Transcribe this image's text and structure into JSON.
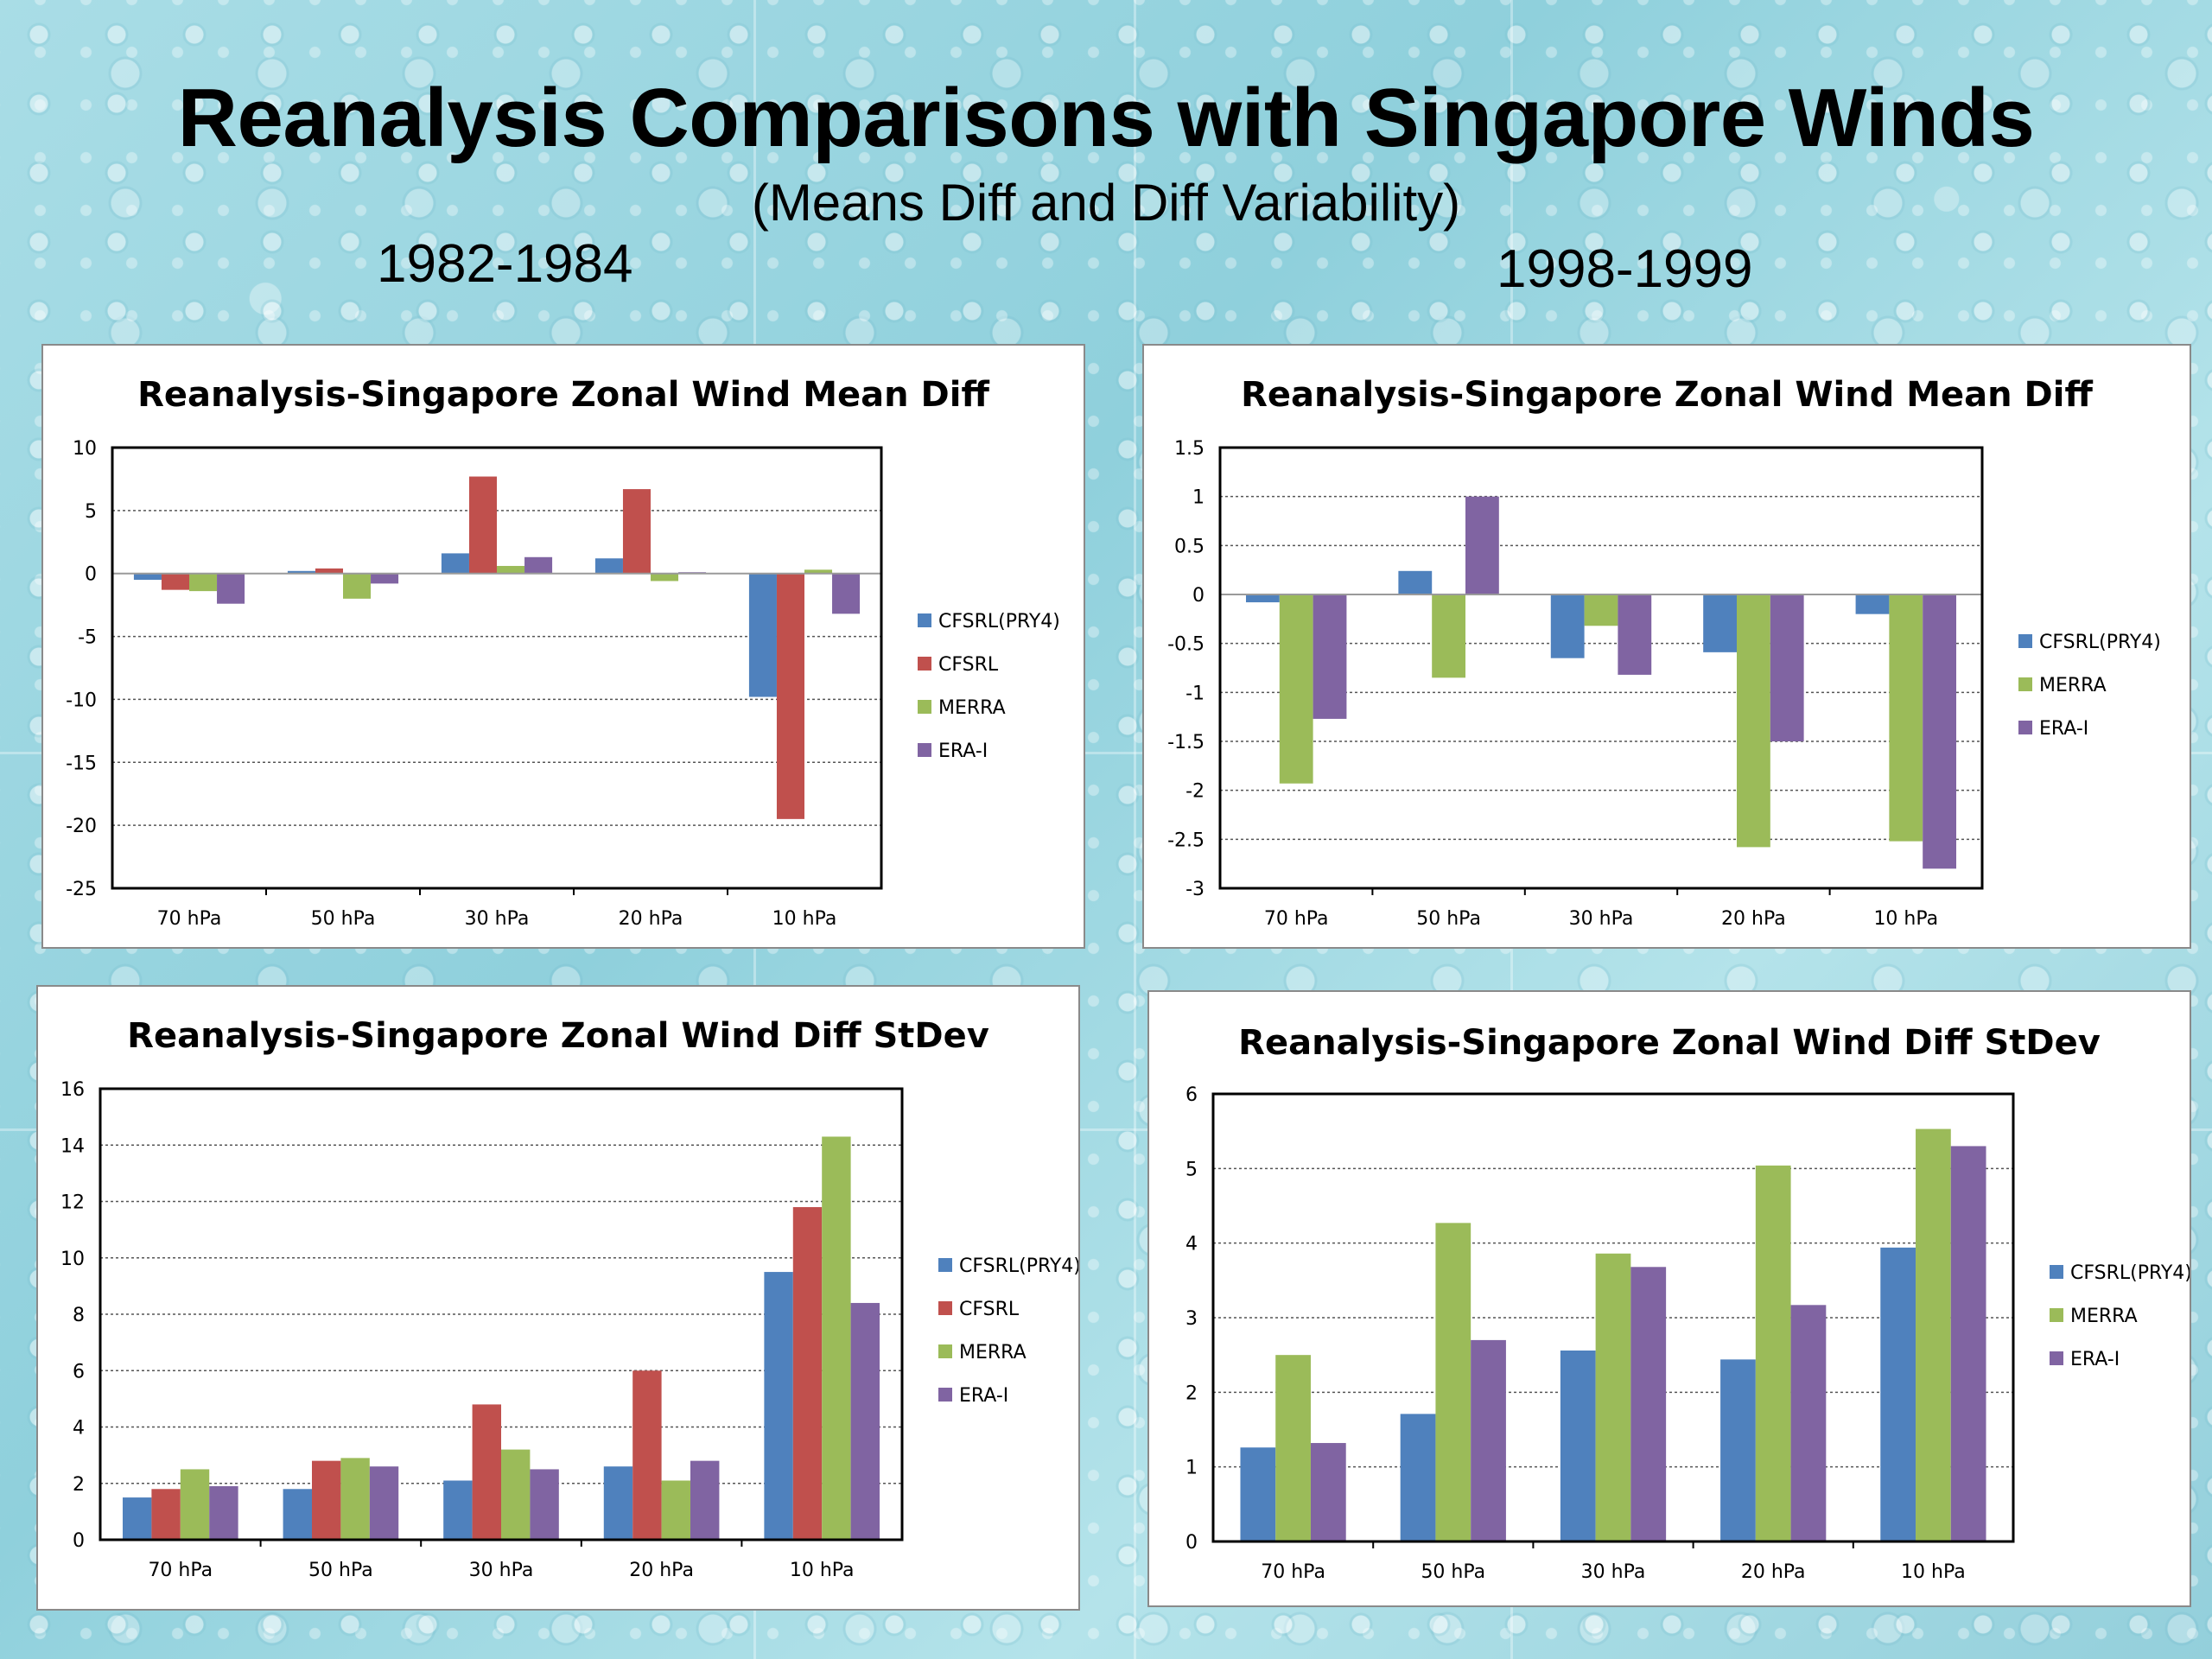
{
  "slide": {
    "title": "Reanalysis Comparisons with Singapore Winds",
    "subtitle": "(Means Diff and Diff Variability)",
    "period_left": "1982-1984",
    "period_right": "1998-1999"
  },
  "colors": {
    "CFSRL(PRY4)": "#4f81bd",
    "CFSRL": "#c0504d",
    "MERRA": "#9bbb59",
    "ERA-I": "#8064a2"
  },
  "chart_data": [
    {
      "type": "bar",
      "title": "Reanalysis-Singapore Zonal Wind Mean Diff",
      "categories": [
        "70 hPa",
        "50 hPa",
        "30 hPa",
        "20 hPa",
        "10 hPa"
      ],
      "series": [
        {
          "name": "CFSRL(PRY4)",
          "values": [
            -0.5,
            0.2,
            1.6,
            1.2,
            -9.8
          ]
        },
        {
          "name": "CFSRL",
          "values": [
            -1.3,
            0.4,
            7.7,
            6.7,
            -19.5
          ]
        },
        {
          "name": "MERRA",
          "values": [
            -1.4,
            -2.0,
            0.6,
            -0.6,
            0.3
          ]
        },
        {
          "name": "ERA-I",
          "values": [
            -2.4,
            -0.8,
            1.3,
            0.1,
            -3.2
          ]
        }
      ],
      "ylim": [
        -25,
        10
      ],
      "yticks": [
        10,
        5,
        0,
        -5,
        -10,
        -15,
        -20,
        -25
      ],
      "grid": true,
      "legend": "right"
    },
    {
      "type": "bar",
      "title": "Reanalysis-Singapore Zonal Wind Mean Diff",
      "categories": [
        "70 hPa",
        "50 hPa",
        "30 hPa",
        "20 hPa",
        "10 hPa"
      ],
      "series": [
        {
          "name": "CFSRL(PRY4)",
          "values": [
            -0.08,
            0.24,
            -0.65,
            -0.59,
            -0.2
          ]
        },
        {
          "name": "MERRA",
          "values": [
            -1.93,
            -0.85,
            -0.32,
            -2.58,
            -2.52
          ]
        },
        {
          "name": "ERA-I",
          "values": [
            -1.27,
            1.0,
            -0.82,
            -1.5,
            -2.8
          ]
        }
      ],
      "ylim": [
        -3,
        1.5
      ],
      "yticks": [
        1.5,
        1,
        0.5,
        0,
        -0.5,
        -1,
        -1.5,
        -2,
        -2.5,
        -3
      ],
      "grid": true,
      "legend": "right"
    },
    {
      "type": "bar",
      "title": "Reanalysis-Singapore Zonal Wind Diff StDev",
      "categories": [
        "70 hPa",
        "50 hPa",
        "30 hPa",
        "20 hPa",
        "10 hPa"
      ],
      "series": [
        {
          "name": "CFSRL(PRY4)",
          "values": [
            1.5,
            1.8,
            2.1,
            2.6,
            9.5
          ]
        },
        {
          "name": "CFSRL",
          "values": [
            1.8,
            2.8,
            4.8,
            6.0,
            11.8
          ]
        },
        {
          "name": "MERRA",
          "values": [
            2.5,
            2.9,
            3.2,
            2.1,
            14.3
          ]
        },
        {
          "name": "ERA-I",
          "values": [
            1.9,
            2.6,
            2.5,
            2.8,
            8.4
          ]
        }
      ],
      "ylim": [
        0,
        16
      ],
      "yticks": [
        16,
        14,
        12,
        10,
        8,
        6,
        4,
        2,
        0
      ],
      "grid": true,
      "legend": "right"
    },
    {
      "type": "bar",
      "title": "Reanalysis-Singapore Zonal Wind Diff StDev",
      "categories": [
        "70 hPa",
        "50 hPa",
        "30 hPa",
        "20 hPa",
        "10 hPa"
      ],
      "series": [
        {
          "name": "CFSRL(PRY4)",
          "values": [
            1.26,
            1.71,
            2.56,
            2.44,
            3.94
          ]
        },
        {
          "name": "MERRA",
          "values": [
            2.5,
            4.27,
            3.86,
            5.04,
            5.53
          ]
        },
        {
          "name": "ERA-I",
          "values": [
            1.32,
            2.7,
            3.68,
            3.17,
            5.3
          ]
        }
      ],
      "ylim": [
        0,
        6
      ],
      "yticks": [
        6,
        5,
        4,
        3,
        2,
        1,
        0
      ],
      "grid": true,
      "legend": "right"
    }
  ]
}
